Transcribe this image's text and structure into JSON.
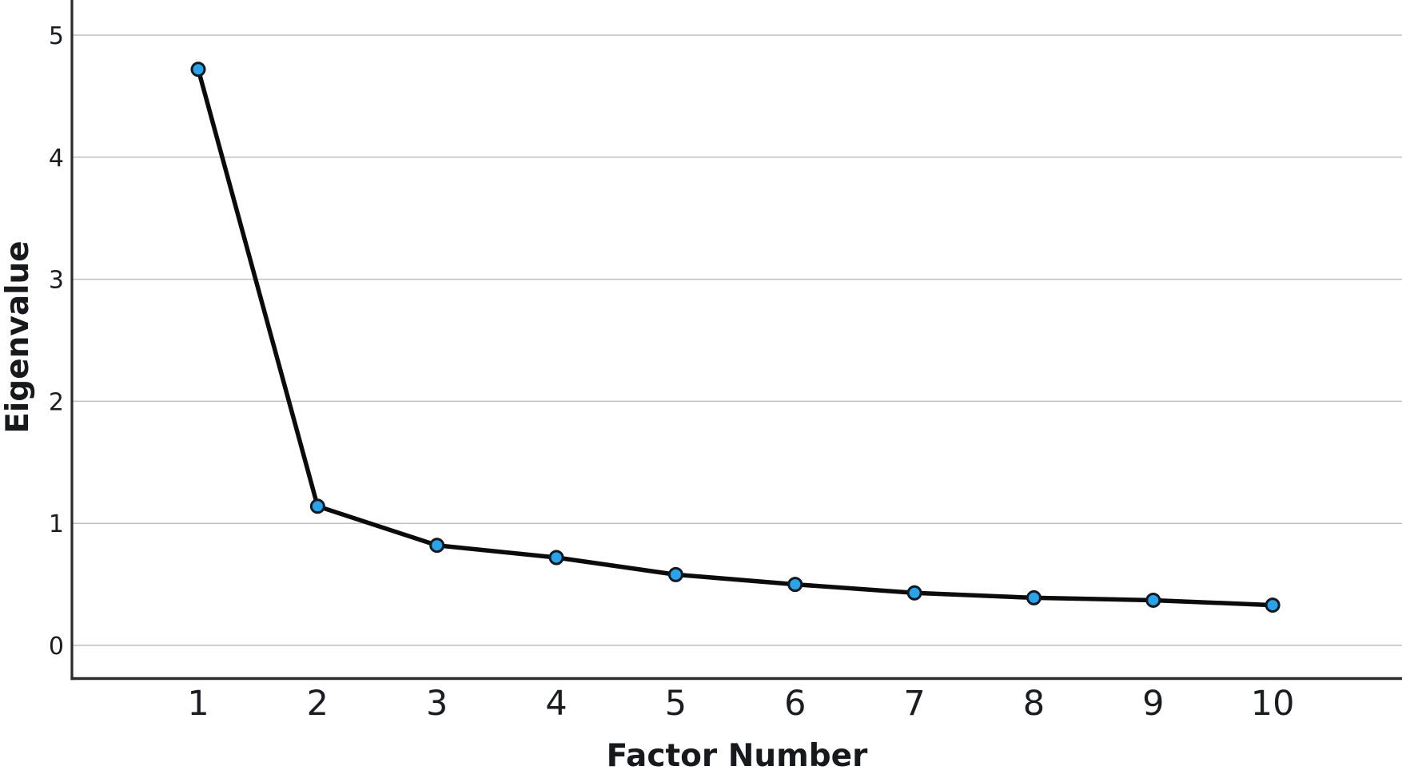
{
  "chart_data": {
    "type": "line",
    "title": "",
    "xlabel": "Factor Number",
    "ylabel": "Eigenvalue",
    "x": [
      1,
      2,
      3,
      4,
      5,
      6,
      7,
      8,
      9,
      10
    ],
    "values": [
      4.72,
      1.14,
      0.82,
      0.72,
      0.58,
      0.5,
      0.43,
      0.39,
      0.37,
      0.33
    ],
    "xticks": [
      "1",
      "2",
      "3",
      "4",
      "5",
      "6",
      "7",
      "8",
      "9",
      "10"
    ],
    "yticks": [
      "0",
      "1",
      "2",
      "3",
      "4",
      "5"
    ],
    "ytick_values": [
      0,
      1,
      2,
      3,
      4,
      5
    ],
    "ylim": [
      -0.27,
      5.29
    ],
    "grid": "horizontal",
    "legend": "none",
    "marker": "circle",
    "colors": {
      "marker_fill": "#29a3ea",
      "marker_stroke": "#131920",
      "line": "#0b0b0b",
      "grid": "#bfbfbf",
      "axis": "#2b2b2b",
      "text": "#17191c",
      "background": "#ffffff"
    }
  }
}
